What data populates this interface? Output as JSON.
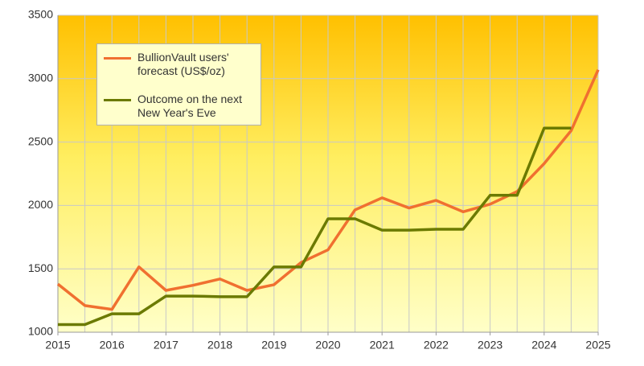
{
  "chart_data": {
    "type": "line",
    "x": [
      2015,
      2015.5,
      2016,
      2016.5,
      2017,
      2017.5,
      2018,
      2018.5,
      2019,
      2019.5,
      2020,
      2020.5,
      2021,
      2021.5,
      2022,
      2022.5,
      2023,
      2023.5,
      2024,
      2024.5,
      2025
    ],
    "series": [
      {
        "name": "BullionVault users' forecast (US$/oz)",
        "color": "#f07030",
        "values": [
          1380,
          1210,
          1180,
          1515,
          1330,
          1370,
          1420,
          1330,
          1375,
          1550,
          1650,
          1965,
          2060,
          1980,
          2040,
          1950,
          2010,
          2110,
          2330,
          2590,
          3070
        ]
      },
      {
        "name": "Outcome on the next New Year's Eve",
        "color": "#6b7a00",
        "values": [
          1060,
          1060,
          1145,
          1145,
          1285,
          1285,
          1280,
          1280,
          1515,
          1515,
          1895,
          1895,
          1805,
          1805,
          1812,
          1812,
          2080,
          2080,
          2610,
          2610,
          null
        ]
      }
    ],
    "xlim": [
      2015,
      2025
    ],
    "xticks": [
      2015,
      2016,
      2017,
      2018,
      2019,
      2020,
      2021,
      2022,
      2023,
      2024,
      2025
    ],
    "ylim": [
      1000,
      3500
    ],
    "yticks": [
      1000,
      1500,
      2000,
      2500,
      3000,
      3500
    ],
    "grid": true
  }
}
